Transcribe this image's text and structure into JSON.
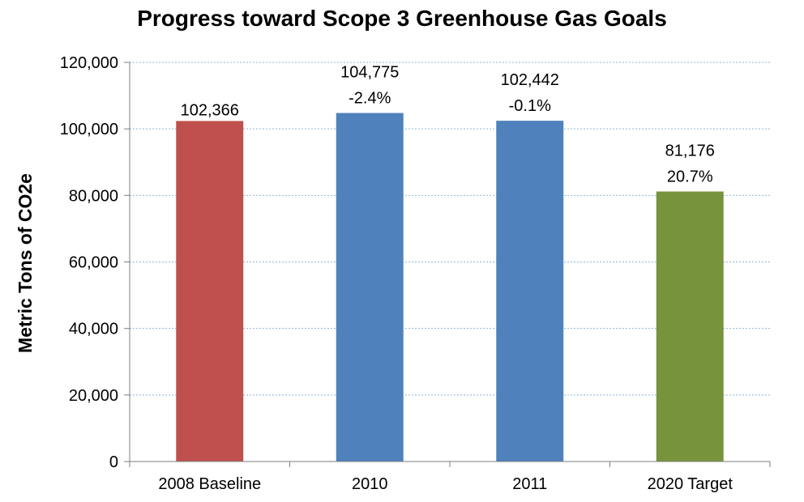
{
  "chart_data": {
    "type": "bar",
    "title": "Progress toward Scope 3 Greenhouse Gas Goals",
    "xlabel": "",
    "ylabel": "Metric Tons of CO2e",
    "ylim": [
      0,
      120000
    ],
    "yticks": [
      0,
      20000,
      40000,
      60000,
      80000,
      100000,
      120000
    ],
    "ytick_labels": [
      "0",
      "20,000",
      "40,000",
      "60,000",
      "80,000",
      "100,000",
      "120,000"
    ],
    "grid": true,
    "categories": [
      "2008 Baseline",
      "2010",
      "2011",
      "2020 Target"
    ],
    "values": [
      102366,
      104775,
      102442,
      81176
    ],
    "value_labels": [
      "102,366",
      "104,775",
      "102,442",
      "81,176"
    ],
    "change_labels": [
      "",
      "-2.4%",
      "-0.1%",
      "20.7%"
    ],
    "bar_colors": [
      "#c0504d",
      "#4f81bd",
      "#4f81bd",
      "#77933c"
    ]
  }
}
